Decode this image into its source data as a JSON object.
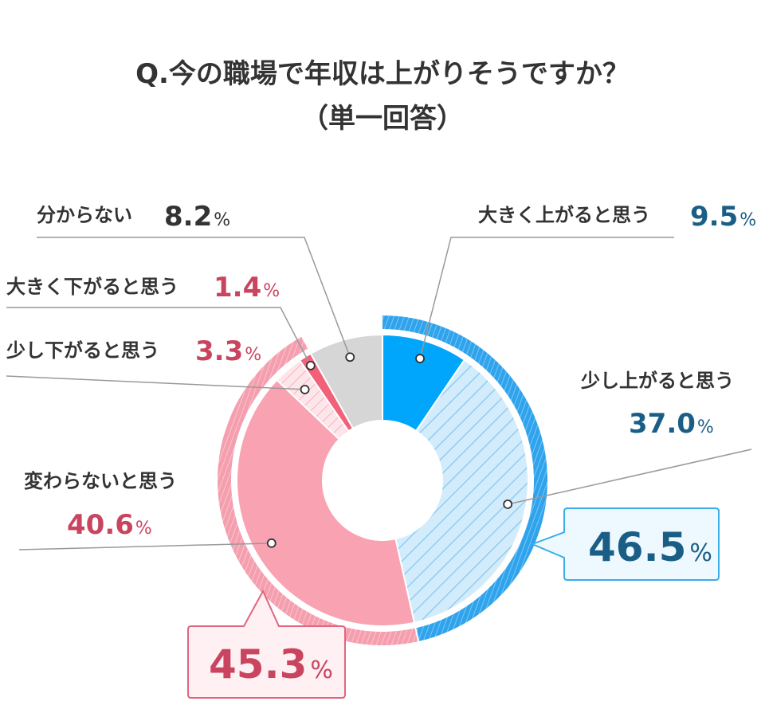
{
  "title_line1": "Q.今の職場で年収は上がりそうですか？",
  "title_line2": "（単一回答）",
  "chart_data": {
    "type": "pie",
    "categories": [
      "大きく上がると思う",
      "少し上がると思う",
      "変わらないと思う",
      "少し下がると思う",
      "大きく下がると思う",
      "分からない"
    ],
    "values": [
      9.5,
      37.0,
      40.6,
      3.3,
      1.4,
      8.2
    ],
    "unit": "%",
    "group_totals": [
      {
        "label_value": "46.5",
        "unit": "%",
        "members": [
          "大きく上がると思う",
          "少し上がると思う"
        ],
        "color": "#1a5e86"
      },
      {
        "label_value": "45.3",
        "unit": "%",
        "members": [
          "変わらないと思う",
          "少し下がると思う",
          "大きく下がると思う"
        ],
        "color": "#c9455f"
      }
    ]
  },
  "labels": {
    "s0": {
      "name": "大きく上がると思う",
      "value": "9.5",
      "unit": "%"
    },
    "s1": {
      "name": "少し上がると思う",
      "value": "37.0",
      "unit": "%"
    },
    "s2": {
      "name": "変わらないと思う",
      "value": "40.6",
      "unit": "%"
    },
    "s3": {
      "name": "少し下がると思う",
      "value": "3.3",
      "unit": "%"
    },
    "s4": {
      "name": "大きく下がると思う",
      "value": "1.4",
      "unit": "%"
    },
    "s5": {
      "name": "分からない",
      "value": "8.2",
      "unit": "%"
    }
  },
  "colors": {
    "up_big": "#00a6fb",
    "up_small": "#cfeafb",
    "same": "#f9a2b2",
    "down_small": "#fde3e7",
    "down_big": "#f2607a",
    "unknown": "#d6d6d6",
    "blue_text": "#1a5e86",
    "red_text": "#c9455f",
    "dark_text": "#333333"
  }
}
